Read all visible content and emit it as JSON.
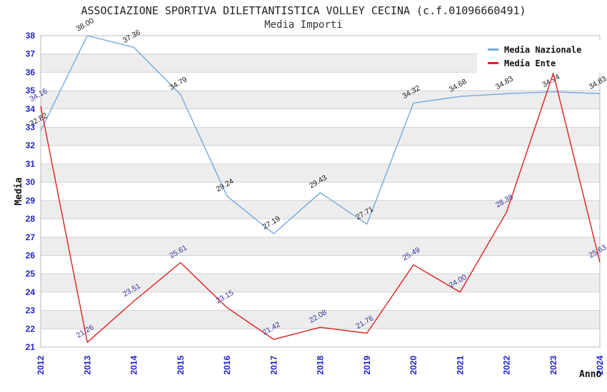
{
  "chart_data": {
    "type": "line",
    "title": "ASSOCIAZIONE SPORTIVA DILETTANTISTICA VOLLEY CECINA (c.f.01096660491)",
    "subtitle": "Media Importi",
    "xlabel": "Anno",
    "ylabel": "Media",
    "x": [
      2012,
      2013,
      2014,
      2015,
      2016,
      2017,
      2018,
      2019,
      2020,
      2021,
      2022,
      2023,
      2024
    ],
    "series": [
      {
        "name": "Media Nazionale",
        "color": "#74a9dc",
        "label_color": "#1a1a1a",
        "values": [
          32.82,
          38.0,
          37.36,
          34.79,
          29.24,
          27.19,
          29.43,
          27.71,
          34.32,
          34.68,
          34.83,
          34.94,
          34.83
        ]
      },
      {
        "name": "Media Ente",
        "color": "#dd2020",
        "label_color": "#333399",
        "values": [
          34.16,
          21.26,
          23.51,
          25.61,
          23.15,
          21.42,
          22.08,
          21.76,
          25.49,
          24.0,
          28.38,
          35.95,
          25.63
        ]
      }
    ],
    "ylim": [
      21,
      38
    ],
    "ytick_step": 1,
    "grid": true,
    "legend_position": "top-right",
    "style": {
      "band_color": "#ededed",
      "grid_color": "#d2d2d2",
      "border_color": "#b8b8b8",
      "tick_label_color": "#2222cc",
      "axis_title_color": "#111111"
    }
  }
}
